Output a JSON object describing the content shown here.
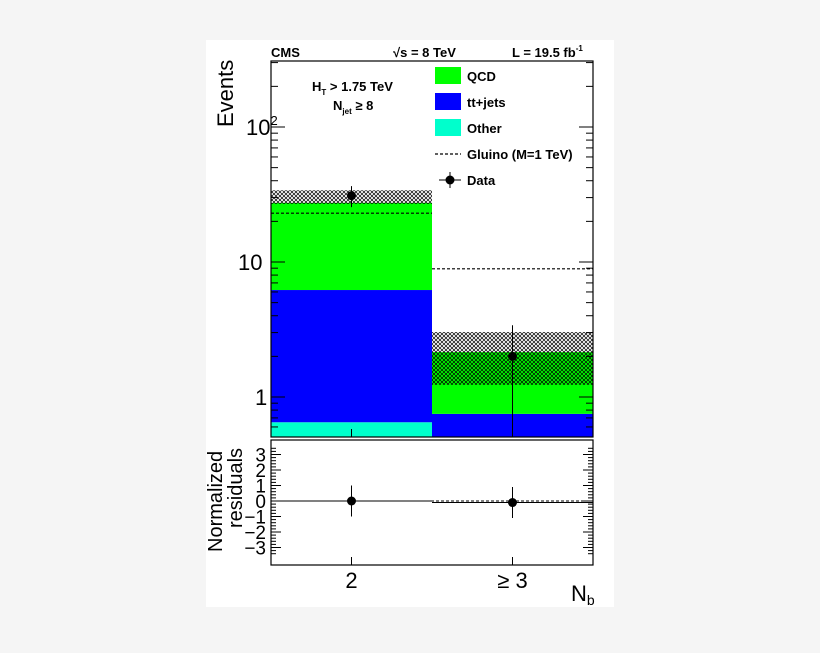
{
  "chart_data": {
    "type": "bar",
    "stacked": true,
    "header": {
      "experiment": "CMS",
      "energy": "√s = 8 TeV",
      "lumi_prefix": "L = 19.5 fb",
      "lumi_sup": "-1"
    },
    "annotations": [
      {
        "main": "H",
        "sub": "T",
        "rest": " > 1.75 TeV"
      },
      {
        "main": "N",
        "sub": "jet",
        "rest": " ≥ 8"
      }
    ],
    "categories": [
      "2",
      "≥ 3"
    ],
    "xlabel": {
      "main": "N",
      "sub": "b"
    },
    "ylabel": "Events",
    "yscale": "log",
    "ylim": [
      0.5,
      300
    ],
    "yticks": [
      {
        "v": 1,
        "label": "1"
      },
      {
        "v": 10,
        "label": "10"
      },
      {
        "v": 100,
        "label": "10",
        "sup": "2"
      }
    ],
    "colors": {
      "QCD": "#00ff00",
      "ttjets": "#0000ff",
      "Other": "#00ffcc",
      "band": "#000000"
    },
    "series": [
      {
        "name": "Other",
        "values": [
          0.65,
          0.0
        ]
      },
      {
        "name": "tt+jets",
        "values": [
          5.55,
          0.75
        ]
      },
      {
        "name": "QCD",
        "values": [
          21.2,
          1.4
        ]
      }
    ],
    "uncertainty_band": [
      [
        26.9,
        34.0
      ],
      [
        1.23,
        3.03
      ]
    ],
    "gluino": {
      "name": "Gluino (M=1 TeV)",
      "values": [
        23,
        8.9
      ]
    },
    "data": {
      "name": "Data",
      "values": [
        31,
        2.0
      ],
      "err_low": [
        5.5,
        1.9
      ],
      "err_high": [
        5.5,
        1.4
      ]
    },
    "legend": {
      "placement": "top-right",
      "entries": [
        "QCD",
        "tt+jets",
        "Other",
        "Gluino (M=1 TeV)",
        "Data"
      ]
    },
    "residuals": {
      "ylabel_line1": "Normalized",
      "ylabel_line2": "residuals",
      "ylim": [
        -3.5,
        3.5
      ],
      "yticks": [
        "3",
        "2",
        "1",
        "0",
        "−1",
        "−2",
        "−3"
      ],
      "values": [
        0.0,
        -0.1
      ],
      "err": [
        1.0,
        1.0
      ]
    }
  }
}
